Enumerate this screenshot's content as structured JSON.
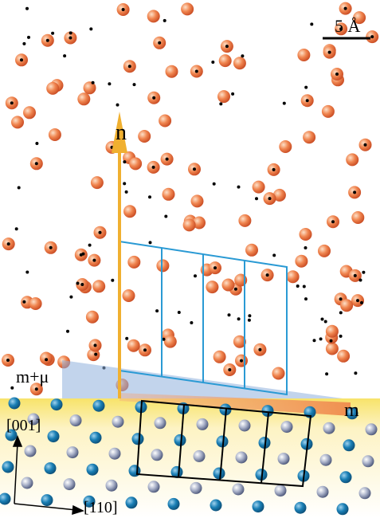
{
  "scale_bar": {
    "label": "5 Å"
  },
  "labels": {
    "normal": "n",
    "interface_shifted": "m+μ",
    "interface": "m"
  },
  "axes": {
    "vertical": "[001]",
    "horizontal": "[110]"
  }
}
